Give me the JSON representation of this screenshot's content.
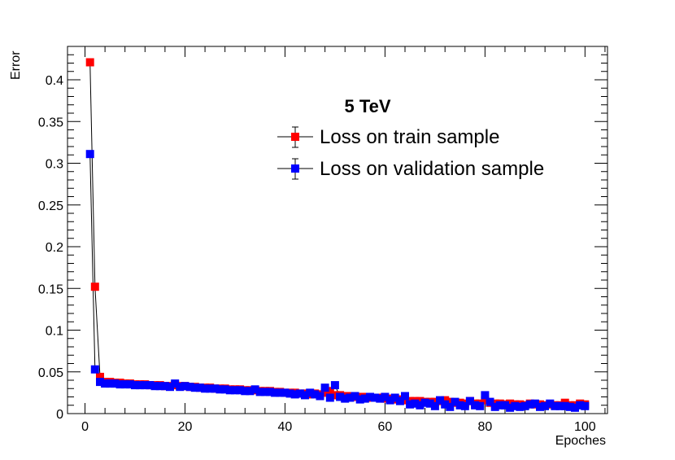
{
  "chart_data": {
    "type": "scatter",
    "title": "",
    "xlabel": "Epoches",
    "ylabel": "Error",
    "xlim": [
      -3.5,
      104.5
    ],
    "ylim": [
      0,
      0.44
    ],
    "grid": false,
    "legend": {
      "title": "5 TeV",
      "placement": "top-right"
    },
    "x_ticks": [
      0,
      20,
      40,
      60,
      80,
      100
    ],
    "y_ticks": [
      0,
      0.05,
      0.1,
      0.15,
      0.2,
      0.25,
      0.3,
      0.35,
      0.4
    ],
    "y_tick_labels": [
      "0",
      "0.05",
      "0.1",
      "0.15",
      "0.2",
      "0.25",
      "0.3",
      "0.35",
      "0.4"
    ],
    "x_tick_labels": [
      "0",
      "20",
      "40",
      "60",
      "80",
      "100"
    ],
    "series": [
      {
        "name": "Loss on train sample",
        "color": "#ff0000",
        "x": [
          1,
          2,
          3,
          4,
          5,
          6,
          7,
          8,
          9,
          10,
          11,
          12,
          13,
          14,
          15,
          16,
          17,
          18,
          19,
          20,
          21,
          22,
          23,
          24,
          25,
          26,
          27,
          28,
          29,
          30,
          31,
          32,
          33,
          34,
          35,
          36,
          37,
          38,
          39,
          40,
          41,
          42,
          43,
          44,
          45,
          46,
          47,
          48,
          49,
          50,
          51,
          52,
          53,
          54,
          55,
          56,
          57,
          58,
          59,
          60,
          61,
          62,
          63,
          64,
          65,
          66,
          67,
          68,
          69,
          70,
          71,
          72,
          73,
          74,
          75,
          76,
          77,
          78,
          79,
          80,
          81,
          82,
          83,
          84,
          85,
          86,
          87,
          88,
          89,
          90,
          91,
          92,
          93,
          94,
          95,
          96,
          97,
          98,
          99,
          100
        ],
        "values": [
          0.421,
          0.152,
          0.044,
          0.038,
          0.038,
          0.037,
          0.037,
          0.036,
          0.036,
          0.035,
          0.035,
          0.035,
          0.034,
          0.034,
          0.034,
          0.033,
          0.033,
          0.034,
          0.033,
          0.033,
          0.032,
          0.032,
          0.031,
          0.031,
          0.031,
          0.03,
          0.03,
          0.03,
          0.029,
          0.029,
          0.029,
          0.028,
          0.028,
          0.028,
          0.027,
          0.027,
          0.027,
          0.026,
          0.026,
          0.025,
          0.025,
          0.025,
          0.024,
          0.024,
          0.023,
          0.024,
          0.023,
          0.025,
          0.027,
          0.022,
          0.022,
          0.021,
          0.021,
          0.02,
          0.02,
          0.02,
          0.019,
          0.019,
          0.019,
          0.018,
          0.018,
          0.017,
          0.017,
          0.016,
          0.015,
          0.015,
          0.015,
          0.014,
          0.014,
          0.014,
          0.015,
          0.016,
          0.014,
          0.013,
          0.013,
          0.012,
          0.015,
          0.012,
          0.012,
          0.016,
          0.013,
          0.012,
          0.012,
          0.011,
          0.012,
          0.011,
          0.011,
          0.01,
          0.012,
          0.011,
          0.011,
          0.01,
          0.011,
          0.01,
          0.01,
          0.013,
          0.01,
          0.01,
          0.012,
          0.011
        ]
      },
      {
        "name": "Loss on validation sample",
        "color": "#0000ff",
        "x": [
          1,
          2,
          3,
          4,
          5,
          6,
          7,
          8,
          9,
          10,
          11,
          12,
          13,
          14,
          15,
          16,
          17,
          18,
          19,
          20,
          21,
          22,
          23,
          24,
          25,
          26,
          27,
          28,
          29,
          30,
          31,
          32,
          33,
          34,
          35,
          36,
          37,
          38,
          39,
          40,
          41,
          42,
          43,
          44,
          45,
          46,
          47,
          48,
          49,
          50,
          51,
          52,
          53,
          54,
          55,
          56,
          57,
          58,
          59,
          60,
          61,
          62,
          63,
          64,
          65,
          66,
          67,
          68,
          69,
          70,
          71,
          72,
          73,
          74,
          75,
          76,
          77,
          78,
          79,
          80,
          81,
          82,
          83,
          84,
          85,
          86,
          87,
          88,
          89,
          90,
          91,
          92,
          93,
          94,
          95,
          96,
          97,
          98,
          99,
          100
        ],
        "values": [
          0.311,
          0.053,
          0.038,
          0.036,
          0.036,
          0.036,
          0.035,
          0.035,
          0.035,
          0.034,
          0.034,
          0.034,
          0.034,
          0.033,
          0.033,
          0.033,
          0.032,
          0.036,
          0.032,
          0.033,
          0.032,
          0.031,
          0.031,
          0.03,
          0.03,
          0.03,
          0.029,
          0.029,
          0.028,
          0.028,
          0.028,
          0.027,
          0.027,
          0.029,
          0.026,
          0.026,
          0.026,
          0.025,
          0.025,
          0.025,
          0.024,
          0.023,
          0.024,
          0.022,
          0.025,
          0.023,
          0.021,
          0.031,
          0.019,
          0.034,
          0.02,
          0.018,
          0.019,
          0.021,
          0.017,
          0.018,
          0.02,
          0.019,
          0.018,
          0.02,
          0.016,
          0.019,
          0.015,
          0.021,
          0.011,
          0.012,
          0.01,
          0.013,
          0.012,
          0.009,
          0.016,
          0.011,
          0.008,
          0.014,
          0.01,
          0.009,
          0.015,
          0.01,
          0.009,
          0.022,
          0.014,
          0.008,
          0.01,
          0.01,
          0.007,
          0.009,
          0.008,
          0.009,
          0.011,
          0.012,
          0.008,
          0.009,
          0.012,
          0.009,
          0.009,
          0.009,
          0.008,
          0.007,
          0.01,
          0.009
        ]
      }
    ]
  }
}
